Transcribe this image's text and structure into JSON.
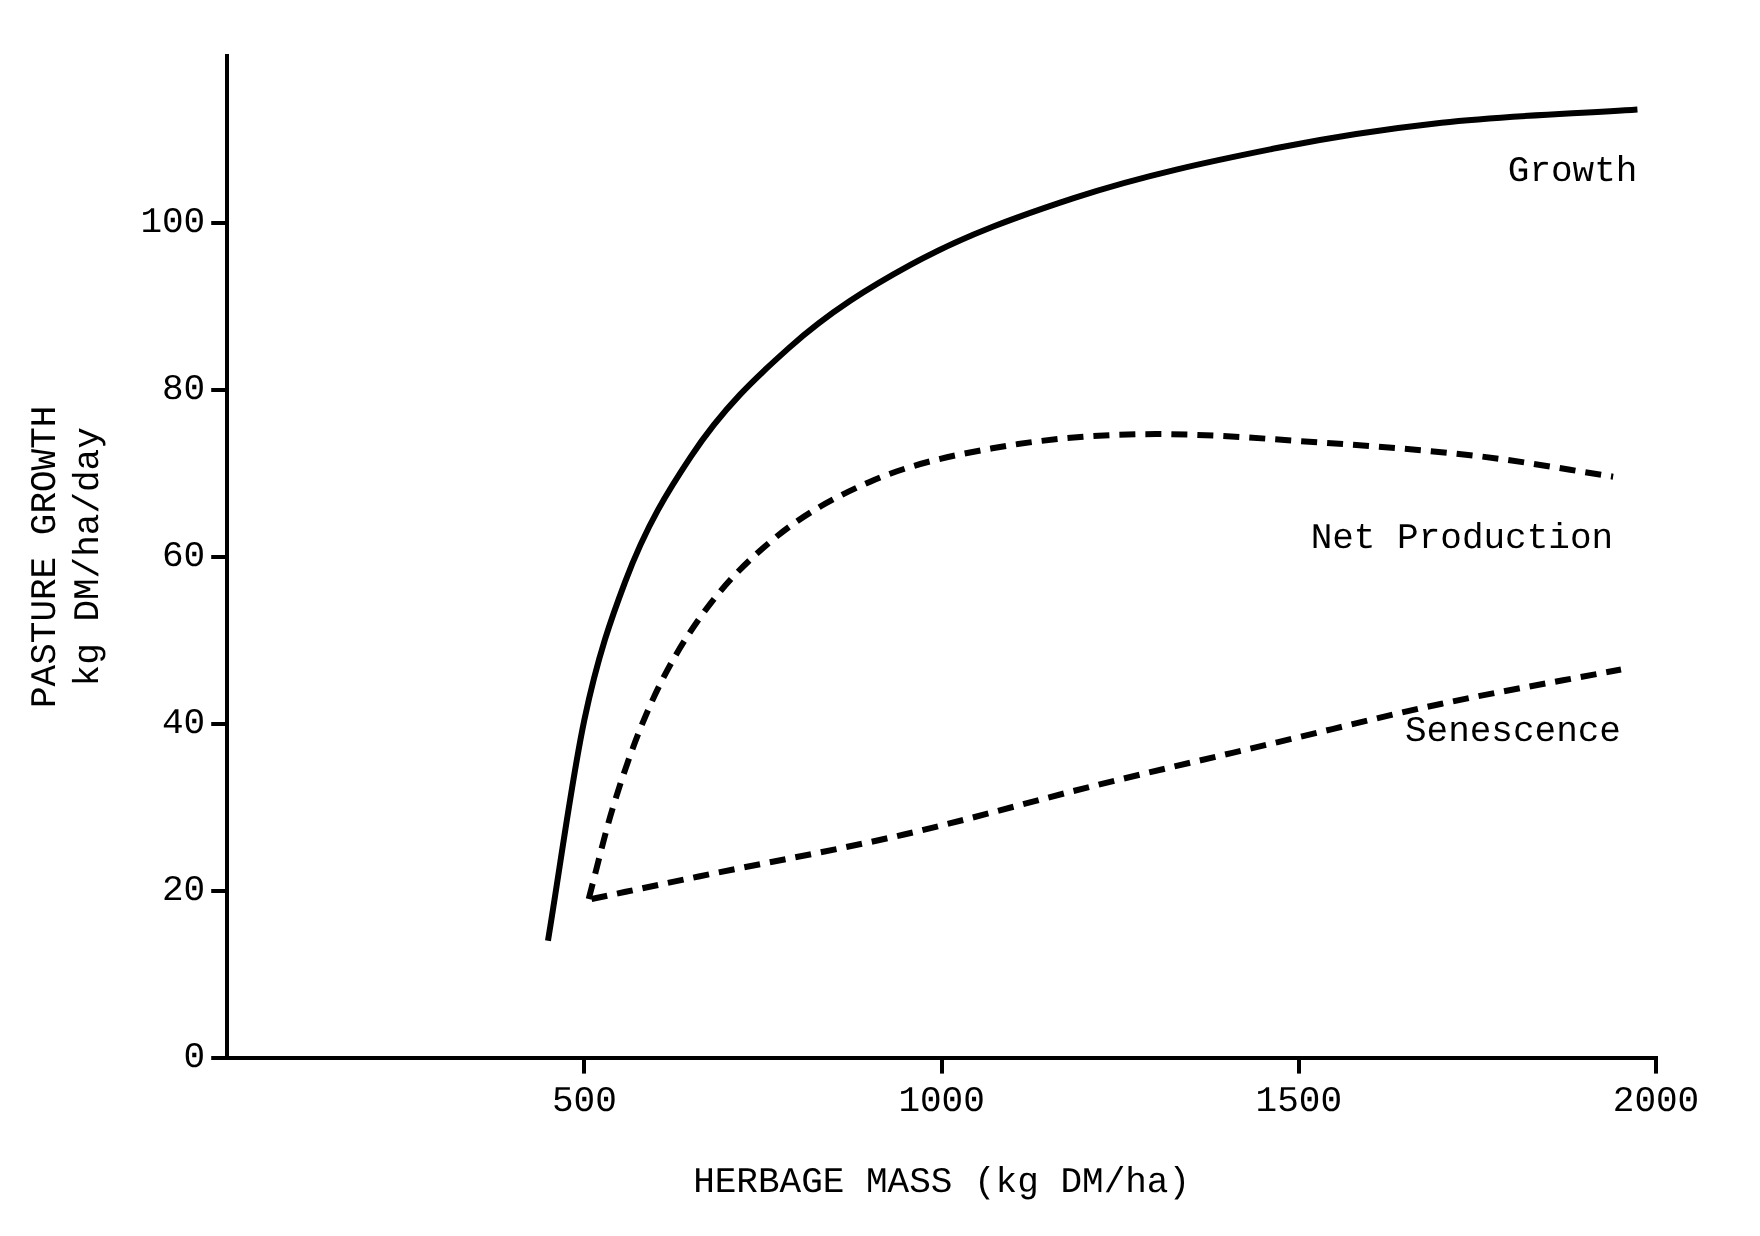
{
  "chart_data": {
    "type": "line",
    "xlabel": "HERBAGE MASS (kg DM/ha)",
    "ylabel": "PASTURE GROWTH\nkg DM/ha/day",
    "xlim": [
      0,
      2000
    ],
    "xticks": [
      500,
      1000,
      1500,
      2000
    ],
    "ylim": [
      0,
      120
    ],
    "yticks": [
      0,
      20,
      40,
      60,
      80,
      100
    ],
    "grid": false,
    "legend": false,
    "marker": "none",
    "series": [
      {
        "name": "Growth",
        "color": "#000000",
        "line_style": "solid",
        "x": [
          449,
          500,
          557,
          649,
          786,
          957,
          1186,
          1471,
          1700,
          1974
        ],
        "values": [
          14,
          40.5,
          57,
          72,
          85,
          95,
          103,
          109,
          112,
          113.6
        ]
      },
      {
        "name": "Net Production",
        "color": "#000000",
        "line_style": "dashed",
        "x": [
          506,
          540,
          591,
          660,
          763,
          900,
          1071,
          1300,
          1529,
          1757,
          1940
        ],
        "values": [
          19,
          30,
          42,
          52.5,
          62,
          69,
          73,
          74.7,
          73.7,
          72,
          69.6
        ]
      },
      {
        "name": "Senescence",
        "color": "#000000",
        "line_style": "dashed",
        "x": [
          510,
          660,
          946,
          1220,
          1471,
          1700,
          1951
        ],
        "values": [
          19,
          21.7,
          26.7,
          32.7,
          37.8,
          42.4,
          46.5
        ]
      }
    ]
  }
}
